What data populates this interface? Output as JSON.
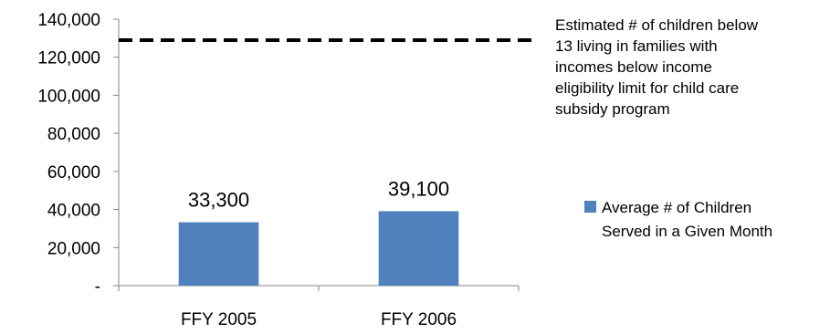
{
  "chart_data": {
    "type": "bar",
    "categories": [
      "FFY 2005",
      "FFY 2006"
    ],
    "series": [
      {
        "name": "Average # of Children Served in a Given Month",
        "values": [
          33300,
          39100
        ],
        "data_labels": [
          "33,300",
          "39,100"
        ],
        "color": "#4F81BD"
      }
    ],
    "reference_line": {
      "name": "Estimated # of children below 13 living in families with incomes below income eligibility limit for child care subsidy program",
      "value": 129000,
      "style": "dashed",
      "color": "#000000"
    },
    "ylim": [
      0,
      140000
    ],
    "yticks": [
      0,
      20000,
      40000,
      60000,
      80000,
      100000,
      120000,
      140000
    ],
    "ytick_labels": [
      "-",
      "20,000",
      "40,000",
      "60,000",
      "80,000",
      "100,000",
      "120,000",
      "140,000"
    ],
    "title": "",
    "xlabel": "",
    "ylabel": "",
    "grid": false,
    "legend_position": "right",
    "legend_items": [
      {
        "lines": [
          "Estimated # of children below",
          "13 living in families with",
          "incomes below income",
          "eligibility limit for child care",
          "subsidy program"
        ]
      },
      {
        "lines": [
          "Average # of Children",
          "Served in a Given Month"
        ]
      }
    ]
  }
}
